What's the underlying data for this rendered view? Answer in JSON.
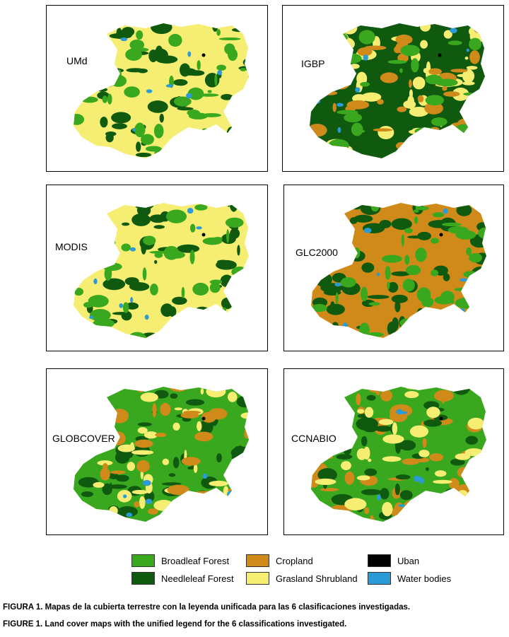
{
  "colors": {
    "broadleaf": "#3aa81f",
    "needleleaf": "#0f5a0f",
    "cropland": "#d08a1a",
    "urban": "#000000",
    "grassland": "#f6ee73",
    "water": "#2a9bd6"
  },
  "panels": [
    {
      "label": "UMd",
      "base": "grassland",
      "patches": [
        "needleleaf",
        "broadleaf",
        "water"
      ]
    },
    {
      "label": "IGBP",
      "base": "needleleaf",
      "patches": [
        "grassland",
        "cropland",
        "broadleaf",
        "water"
      ]
    },
    {
      "label": "MODIS",
      "base": "grassland",
      "patches": [
        "needleleaf",
        "broadleaf",
        "water"
      ]
    },
    {
      "label": "GLC2000",
      "base": "cropland",
      "patches": [
        "needleleaf",
        "broadleaf",
        "water"
      ]
    },
    {
      "label": "GLOBCOVER",
      "base": "broadleaf",
      "patches": [
        "needleleaf",
        "grassland",
        "cropland",
        "water"
      ]
    },
    {
      "label": "CCNABIO",
      "base": "broadleaf",
      "patches": [
        "cropland",
        "needleleaf",
        "grassland",
        "water"
      ]
    }
  ],
  "legend": {
    "items": [
      {
        "label": "Broadleaf Forest",
        "color_key": "broadleaf"
      },
      {
        "label": "Cropland",
        "color_key": "cropland"
      },
      {
        "label": "Uban",
        "color_key": "urban"
      },
      {
        "label": "Needleleaf Forest",
        "color_key": "needleleaf"
      },
      {
        "label": "Grasland Shrubland",
        "color_key": "grassland"
      },
      {
        "label": "Water bodies",
        "color_key": "water"
      }
    ]
  },
  "captions": {
    "spanish": "FIGURA 1. Mapas de la cubierta terrestre con la leyenda unificada para las 6 clasificaciones investigadas.",
    "english": "FIGURE 1. Land cover maps with the unified legend for the 6 classifications investigated."
  }
}
